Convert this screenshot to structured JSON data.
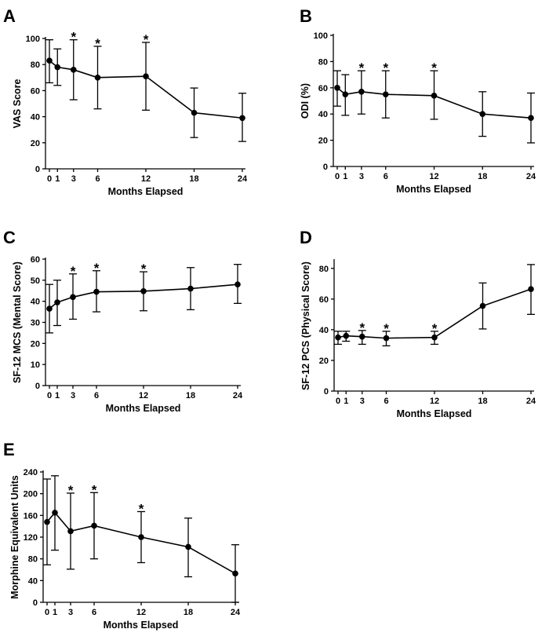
{
  "figure": {
    "title": ""
  },
  "chart_data": [
    {
      "panel": "A",
      "type": "line",
      "xlabel": "Months Elapsed",
      "ylabel": "VAS Score",
      "x": [
        0,
        1,
        3,
        6,
        12,
        18,
        24
      ],
      "x_tick_labels": [
        "0",
        "1",
        "3",
        "6",
        "12",
        "18",
        "24"
      ],
      "ylim": [
        0,
        100
      ],
      "yticks": [
        0,
        20,
        40,
        60,
        80,
        100
      ],
      "values": [
        83,
        78,
        76,
        70,
        71,
        43,
        39
      ],
      "err_upper": [
        99,
        92,
        99,
        94,
        97,
        62,
        58
      ],
      "err_lower": [
        66,
        64,
        53,
        46,
        45,
        24,
        21
      ],
      "significance": [
        "",
        "",
        "*",
        "*",
        "*",
        "",
        ""
      ]
    },
    {
      "panel": "B",
      "type": "line",
      "xlabel": "Months Elapsed",
      "ylabel": "ODI (%)",
      "x": [
        0,
        1,
        3,
        6,
        12,
        18,
        24
      ],
      "x_tick_labels": [
        "0",
        "1",
        "3",
        "6",
        "12",
        "18",
        "24"
      ],
      "ylim": [
        0,
        100
      ],
      "yticks": [
        0,
        20,
        40,
        60,
        80,
        100
      ],
      "values": [
        60,
        55,
        57,
        55,
        54,
        40,
        37
      ],
      "err_upper": [
        73,
        70,
        73,
        73,
        73,
        57,
        56
      ],
      "err_lower": [
        46,
        39,
        40,
        37,
        36,
        23,
        18
      ],
      "significance": [
        "",
        "",
        "*",
        "*",
        "*",
        "",
        ""
      ]
    },
    {
      "panel": "C",
      "type": "line",
      "xlabel": "Months Elapsed",
      "ylabel": "SF-12 MCS (Mental Score)",
      "x": [
        0,
        1,
        3,
        6,
        12,
        18,
        24
      ],
      "x_tick_labels": [
        "0",
        "1",
        "3",
        "6",
        "12",
        "18",
        "24"
      ],
      "ylim": [
        0,
        60
      ],
      "yticks": [
        0,
        10,
        20,
        30,
        40,
        50,
        60
      ],
      "values": [
        36.5,
        39.5,
        42,
        44.5,
        44.8,
        46,
        48
      ],
      "err_upper": [
        48,
        50,
        53,
        54.5,
        54,
        56,
        57.5
      ],
      "err_lower": [
        25,
        28.5,
        31.5,
        35,
        35.5,
        36,
        39
      ],
      "significance": [
        "",
        "",
        "*",
        "*",
        "*",
        "",
        ""
      ]
    },
    {
      "panel": "D",
      "type": "line",
      "xlabel": "Months Elapsed",
      "ylabel": "SF-12 PCS (Physical Score)",
      "x": [
        0,
        1,
        3,
        6,
        12,
        18,
        24
      ],
      "x_tick_labels": [
        "0",
        "1",
        "3",
        "6",
        "12",
        "18",
        "24"
      ],
      "ylim": [
        0,
        85
      ],
      "yticks": [
        0,
        20,
        40,
        60,
        80
      ],
      "values": [
        35,
        36,
        35.5,
        34.5,
        35,
        55.5,
        66.5
      ],
      "err_upper": [
        39,
        39,
        39.5,
        39,
        39,
        70.5,
        82.5
      ],
      "err_lower": [
        30.5,
        32.5,
        30.5,
        29.5,
        30.5,
        40.5,
        50
      ],
      "significance": [
        "",
        "",
        "*",
        "*",
        "*",
        "",
        ""
      ]
    },
    {
      "panel": "E",
      "type": "line",
      "xlabel": "Months Elapsed",
      "ylabel": "Morphine Equivalent Units",
      "x": [
        0,
        1,
        3,
        6,
        12,
        18,
        24
      ],
      "x_tick_labels": [
        "0",
        "1",
        "3",
        "6",
        "12",
        "18",
        "24"
      ],
      "ylim": [
        0,
        240
      ],
      "yticks": [
        0,
        40,
        80,
        120,
        160,
        200,
        240
      ],
      "values": [
        148,
        165,
        131,
        141,
        120,
        102,
        53
      ],
      "err_upper": [
        227,
        233,
        201,
        202,
        167,
        155,
        106
      ],
      "err_lower": [
        69,
        96,
        61,
        80,
        73,
        47,
        0
      ],
      "significance": [
        "",
        "",
        "*",
        "*",
        "*",
        "",
        ""
      ]
    }
  ]
}
